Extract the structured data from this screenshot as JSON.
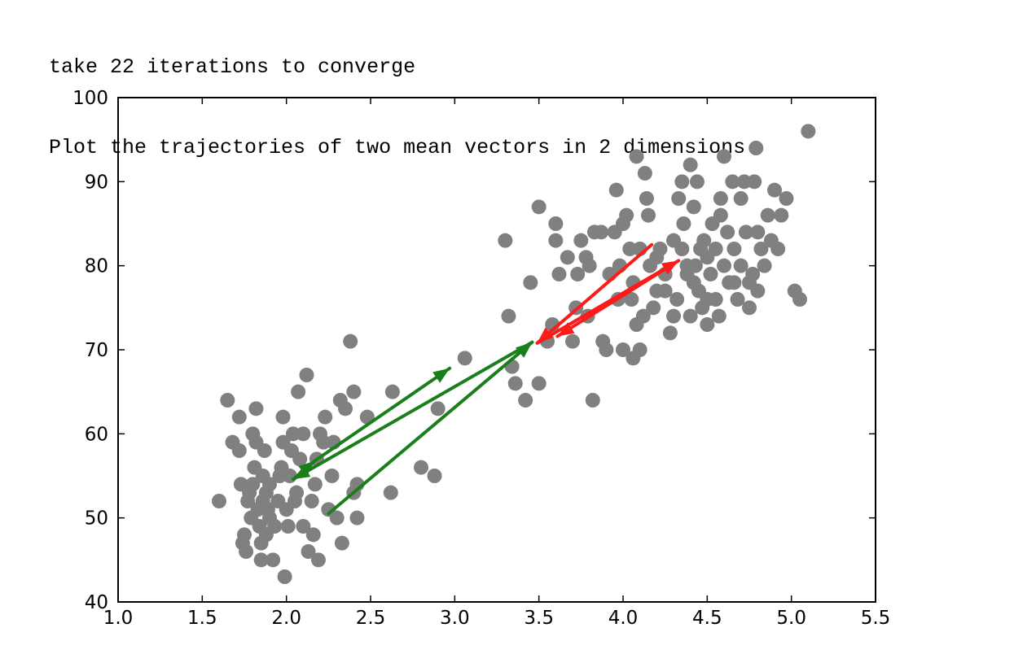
{
  "output_lines": [
    "take 22 iterations to converge",
    "Plot the trajectories of two mean vectors in 2 dimensions"
  ],
  "colors": {
    "points": "#808080",
    "red_path": "#ff1a1a",
    "green_path": "#1a7f1a",
    "axes": "#000000"
  },
  "chart_data": {
    "type": "scatter",
    "title": "",
    "xlabel": "",
    "ylabel": "",
    "xlim": [
      1.0,
      5.5
    ],
    "ylim": [
      40,
      100
    ],
    "x_ticks": [
      1.0,
      1.5,
      2.0,
      2.5,
      3.0,
      3.5,
      4.0,
      4.5,
      5.0,
      5.5
    ],
    "x_tick_labels": [
      "1.0",
      "1.5",
      "2.0",
      "2.5",
      "3.0",
      "3.5",
      "4.0",
      "4.5",
      "5.0",
      "5.5"
    ],
    "y_ticks": [
      40,
      50,
      60,
      70,
      80,
      90,
      100
    ],
    "y_tick_labels": [
      "40",
      "50",
      "60",
      "70",
      "80",
      "90",
      "100"
    ],
    "grid": false,
    "points": [
      [
        1.6,
        52
      ],
      [
        1.65,
        64
      ],
      [
        1.68,
        59
      ],
      [
        1.72,
        62
      ],
      [
        1.72,
        58
      ],
      [
        1.73,
        54
      ],
      [
        1.74,
        47
      ],
      [
        1.75,
        48
      ],
      [
        1.76,
        46
      ],
      [
        1.77,
        52
      ],
      [
        1.78,
        53
      ],
      [
        1.79,
        50
      ],
      [
        1.8,
        54
      ],
      [
        1.8,
        60
      ],
      [
        1.81,
        56
      ],
      [
        1.82,
        63
      ],
      [
        1.82,
        59
      ],
      [
        1.83,
        51
      ],
      [
        1.84,
        49
      ],
      [
        1.85,
        47
      ],
      [
        1.85,
        45
      ],
      [
        1.86,
        52
      ],
      [
        1.86,
        55
      ],
      [
        1.87,
        58
      ],
      [
        1.88,
        53
      ],
      [
        1.88,
        48
      ],
      [
        1.89,
        51
      ],
      [
        1.9,
        54
      ],
      [
        1.9,
        50
      ],
      [
        1.92,
        45
      ],
      [
        1.93,
        49
      ],
      [
        1.95,
        52
      ],
      [
        1.96,
        55
      ],
      [
        1.97,
        56
      ],
      [
        1.98,
        59
      ],
      [
        1.98,
        62
      ],
      [
        1.99,
        43
      ],
      [
        2.0,
        51
      ],
      [
        2.01,
        49
      ],
      [
        2.02,
        55
      ],
      [
        2.03,
        58
      ],
      [
        2.04,
        60
      ],
      [
        2.05,
        52
      ],
      [
        2.06,
        53
      ],
      [
        2.07,
        65
      ],
      [
        2.08,
        57
      ],
      [
        2.1,
        60
      ],
      [
        2.1,
        49
      ],
      [
        2.12,
        67
      ],
      [
        2.13,
        46
      ],
      [
        2.15,
        52
      ],
      [
        2.16,
        48
      ],
      [
        2.17,
        54
      ],
      [
        2.18,
        57
      ],
      [
        2.19,
        45
      ],
      [
        2.2,
        60
      ],
      [
        2.22,
        59
      ],
      [
        2.23,
        62
      ],
      [
        2.25,
        51
      ],
      [
        2.27,
        55
      ],
      [
        2.28,
        59
      ],
      [
        2.3,
        50
      ],
      [
        2.32,
        64
      ],
      [
        2.33,
        47
      ],
      [
        2.35,
        63
      ],
      [
        2.38,
        71
      ],
      [
        2.4,
        53
      ],
      [
        2.4,
        65
      ],
      [
        2.42,
        50
      ],
      [
        2.42,
        54
      ],
      [
        2.48,
        62
      ],
      [
        2.62,
        53
      ],
      [
        2.63,
        65
      ],
      [
        2.8,
        56
      ],
      [
        2.88,
        55
      ],
      [
        2.9,
        63
      ],
      [
        3.06,
        69
      ],
      [
        3.3,
        83
      ],
      [
        3.32,
        74
      ],
      [
        3.34,
        68
      ],
      [
        3.36,
        66
      ],
      [
        3.42,
        64
      ],
      [
        3.45,
        78
      ],
      [
        3.5,
        66
      ],
      [
        3.5,
        87
      ],
      [
        3.55,
        71
      ],
      [
        3.58,
        73
      ],
      [
        3.6,
        83
      ],
      [
        3.6,
        85
      ],
      [
        3.62,
        79
      ],
      [
        3.67,
        81
      ],
      [
        3.7,
        71
      ],
      [
        3.72,
        75
      ],
      [
        3.73,
        79
      ],
      [
        3.75,
        83
      ],
      [
        3.78,
        81
      ],
      [
        3.79,
        74
      ],
      [
        3.8,
        80
      ],
      [
        3.82,
        64
      ],
      [
        3.83,
        84
      ],
      [
        3.87,
        84
      ],
      [
        3.88,
        71
      ],
      [
        3.9,
        70
      ],
      [
        3.92,
        79
      ],
      [
        3.95,
        84
      ],
      [
        3.96,
        89
      ],
      [
        3.97,
        76
      ],
      [
        4.0,
        70
      ],
      [
        4.0,
        85
      ],
      [
        4.02,
        86
      ],
      [
        4.04,
        82
      ],
      [
        4.05,
        76
      ],
      [
        4.06,
        69
      ],
      [
        4.08,
        93
      ],
      [
        4.08,
        73
      ],
      [
        4.1,
        70
      ],
      [
        4.12,
        74
      ],
      [
        4.13,
        91
      ],
      [
        4.14,
        88
      ],
      [
        4.15,
        86
      ],
      [
        4.16,
        80
      ],
      [
        4.18,
        75
      ],
      [
        4.2,
        77
      ],
      [
        4.22,
        82
      ],
      [
        4.25,
        79
      ],
      [
        4.28,
        72
      ],
      [
        4.3,
        74
      ],
      [
        4.3,
        83
      ],
      [
        4.32,
        76
      ],
      [
        4.33,
        88
      ],
      [
        4.35,
        90
      ],
      [
        4.35,
        82
      ],
      [
        4.36,
        85
      ],
      [
        4.38,
        79
      ],
      [
        4.4,
        74
      ],
      [
        4.4,
        92
      ],
      [
        4.42,
        87
      ],
      [
        4.43,
        80
      ],
      [
        4.44,
        90
      ],
      [
        4.45,
        77
      ],
      [
        4.47,
        75
      ],
      [
        4.48,
        83
      ],
      [
        4.5,
        81
      ],
      [
        4.5,
        73
      ],
      [
        4.52,
        79
      ],
      [
        4.53,
        85
      ],
      [
        4.55,
        76
      ],
      [
        4.55,
        82
      ],
      [
        4.57,
        74
      ],
      [
        4.58,
        88
      ],
      [
        4.6,
        93
      ],
      [
        4.6,
        80
      ],
      [
        4.62,
        84
      ],
      [
        4.63,
        78
      ],
      [
        4.65,
        90
      ],
      [
        4.66,
        82
      ],
      [
        4.68,
        76
      ],
      [
        4.7,
        88
      ],
      [
        4.7,
        80
      ],
      [
        4.72,
        90
      ],
      [
        4.73,
        84
      ],
      [
        4.75,
        75
      ],
      [
        4.77,
        79
      ],
      [
        4.78,
        90
      ],
      [
        4.79,
        94
      ],
      [
        4.8,
        84
      ],
      [
        4.8,
        77
      ],
      [
        4.82,
        82
      ],
      [
        4.84,
        80
      ],
      [
        4.86,
        86
      ],
      [
        4.88,
        83
      ],
      [
        4.9,
        89
      ],
      [
        4.92,
        82
      ],
      [
        4.94,
        86
      ],
      [
        4.97,
        88
      ],
      [
        5.02,
        77
      ],
      [
        5.05,
        76
      ],
      [
        5.1,
        96
      ],
      [
        4.42,
        78
      ],
      [
        4.5,
        76
      ],
      [
        4.2,
        81
      ],
      [
        4.25,
        77
      ],
      [
        4.06,
        78
      ],
      [
        3.98,
        80
      ],
      [
        4.58,
        86
      ],
      [
        4.46,
        82
      ],
      [
        4.38,
        80
      ],
      [
        4.66,
        78
      ],
      [
        4.75,
        78
      ],
      [
        4.1,
        82
      ]
    ],
    "series": [
      {
        "color": "red",
        "path": [
          [
            4.17,
            82.5
          ],
          [
            3.49,
            70.8
          ],
          [
            4.33,
            80.6
          ],
          [
            3.61,
            71.6
          ]
        ]
      },
      {
        "color": "green",
        "path": [
          [
            2.25,
            50.5
          ],
          [
            3.46,
            70.9
          ],
          [
            2.04,
            54.6
          ],
          [
            2.17,
            56.8
          ],
          [
            2.97,
            67.8
          ]
        ]
      }
    ]
  }
}
